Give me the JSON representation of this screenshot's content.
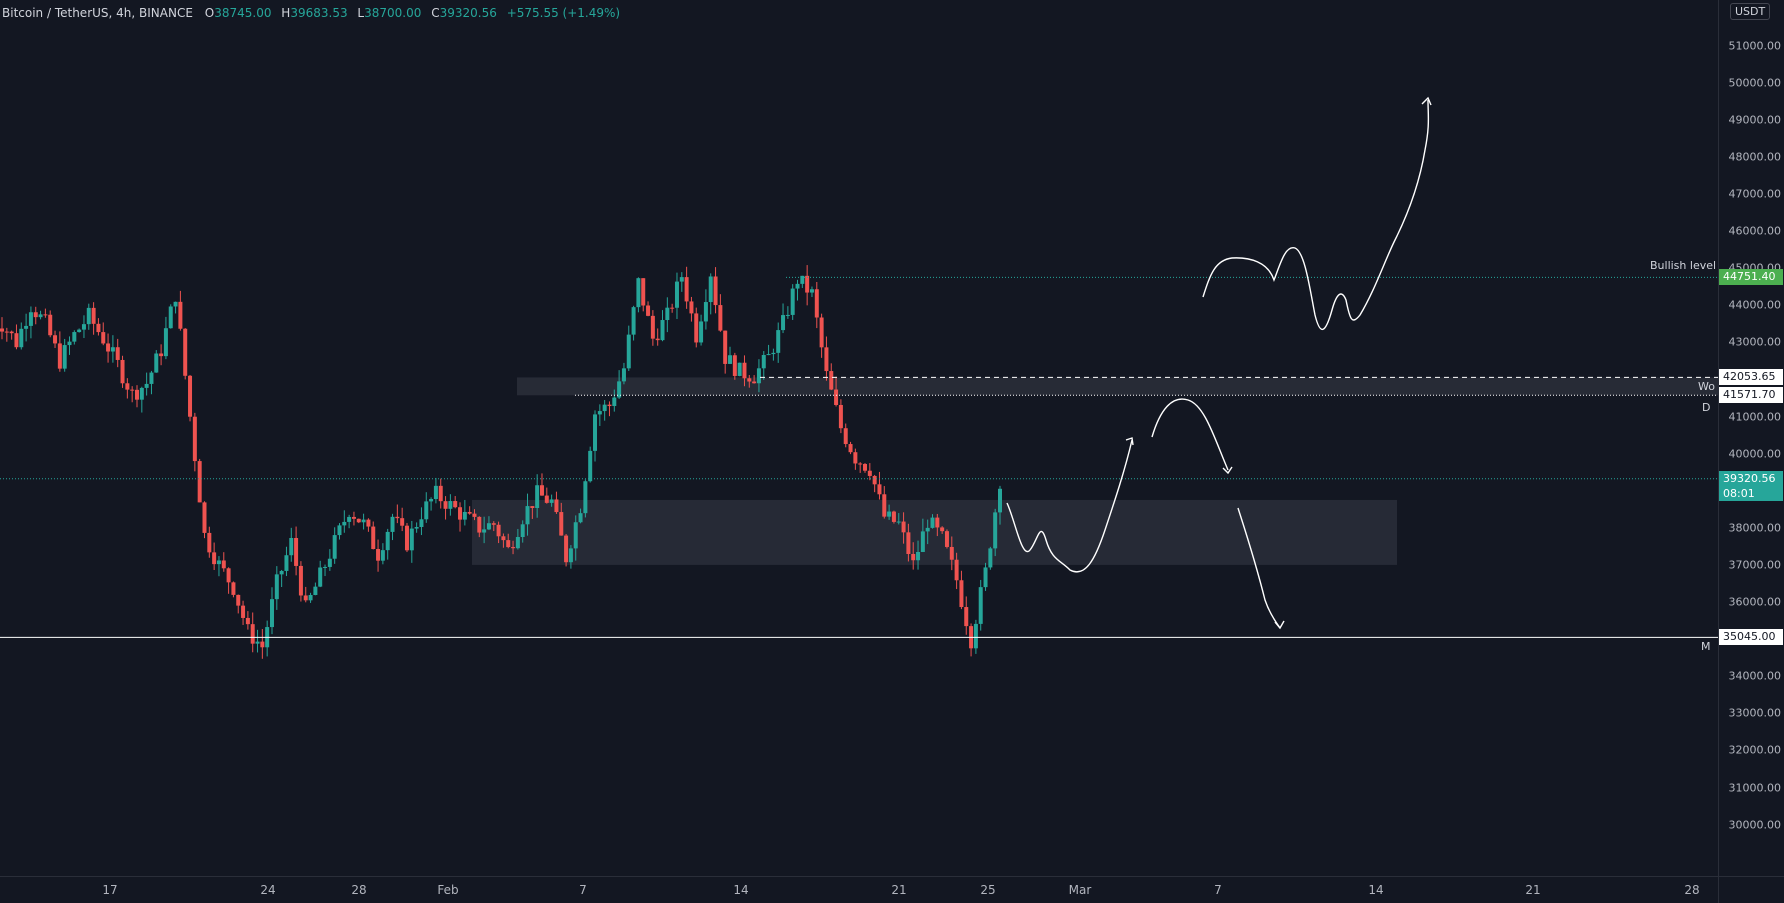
{
  "legend": {
    "symbol": "Bitcoin / TetherUS, 4h, BINANCE",
    "o_label": "O",
    "o": "38745.00",
    "h_label": "H",
    "h": "39683.53",
    "l_label": "L",
    "l": "38700.00",
    "c_label": "C",
    "c": "39320.56",
    "change": "+575.55 (+1.49%)"
  },
  "currency_button": "USDT",
  "price_ticks": [
    "51000.00",
    "50000.00",
    "49000.00",
    "48000.00",
    "47000.00",
    "46000.00",
    "45000.00",
    "44000.00",
    "43000.00",
    "42000.00",
    "41000.00",
    "40000.00",
    "39000.00",
    "38000.00",
    "37000.00",
    "36000.00",
    "35000.00",
    "34000.00",
    "33000.00",
    "32000.00",
    "31000.00",
    "30000.00"
  ],
  "time_ticks": [
    "17",
    "24",
    "28",
    "Feb",
    "7",
    "14",
    "21",
    "25",
    "Mar",
    "7",
    "14",
    "21",
    "28"
  ],
  "levels": {
    "bullish": {
      "label": "Bullish level",
      "price": "44751.40"
    },
    "wo": {
      "label": "Wo",
      "price": "42053.65"
    },
    "d": {
      "label": "D",
      "price": "41571.70"
    },
    "m": {
      "label": "M",
      "price": "35045.00"
    },
    "current": {
      "price": "39320.56",
      "countdown": "08:01"
    }
  },
  "colors": {
    "bg": "#131722",
    "up": "#26a69a",
    "down": "#ef5350",
    "bullish_badge": "#4caf50",
    "zone": "#2a2e39"
  },
  "chart_data": {
    "type": "candlestick",
    "timeframe": "4h",
    "ylim": [
      29500,
      52000
    ],
    "current_price": 39320.56,
    "zones": [
      {
        "from": 41571.7,
        "to": 42053.65,
        "start": "Feb 2",
        "end": "right edge"
      },
      {
        "from": 37000,
        "to": 38750,
        "start": "Feb 2",
        "end": "Mar 15"
      }
    ],
    "horizontal_levels": [
      44751.4,
      42053.65,
      41571.7,
      35045.0
    ],
    "path_closes": [
      43500,
      43000,
      44000,
      43500,
      42500,
      43200,
      43700,
      43100,
      42400,
      41600,
      41900,
      42800,
      44300,
      41000,
      37800,
      37000,
      36400,
      35200,
      34800,
      36500,
      37600,
      35800,
      36700,
      37600,
      38500,
      38100,
      37300,
      38300,
      37600,
      38400,
      38900,
      38600,
      38300,
      38000,
      38100,
      37400,
      38300,
      38900,
      38700,
      37200,
      38600,
      41100,
      41300,
      42300,
      44600,
      43100,
      43700,
      44800,
      43200,
      44900,
      42600,
      42200,
      42100,
      42600,
      43500,
      44700,
      44300,
      42100,
      40700,
      39900,
      39600,
      38300,
      38100,
      37000,
      38200,
      37700,
      36600,
      35000,
      36800,
      39300
    ]
  }
}
